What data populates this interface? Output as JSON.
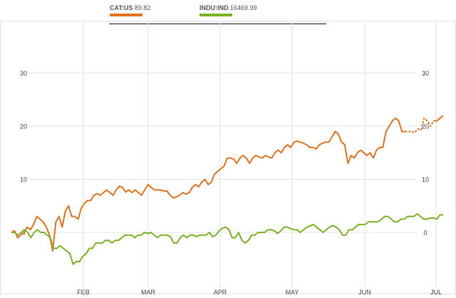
{
  "chart_data": {
    "type": "line",
    "legend": [
      {
        "symbol": "CAT:US",
        "price": "89.82",
        "color": "#e8731f"
      },
      {
        "symbol": "INDU:IND",
        "price": "16469.99",
        "color": "#7ab526"
      }
    ],
    "y_ticks": [
      "0",
      "10",
      "20",
      "30"
    ],
    "ylim": [
      -10,
      40
    ],
    "x_ticks": [
      "FEB",
      "MAR",
      "APR",
      "MAY",
      "JUN",
      "JUL"
    ],
    "grid": true,
    "series": [
      {
        "name": "CAT:US",
        "color": "#e8731f",
        "values": [
          0,
          0.3,
          -1,
          -0.5,
          0,
          1,
          0.5,
          1.5,
          3,
          2.5,
          2,
          1,
          -0.5,
          -3.5,
          2,
          3,
          1,
          4,
          5,
          3,
          3,
          2.5,
          4.5,
          5.5,
          6,
          6,
          7,
          7.3,
          7,
          7.5,
          8,
          7.5,
          7,
          8,
          8.7,
          8.5,
          7.6,
          8,
          7.5,
          8,
          7.5,
          7,
          8,
          9,
          8.5,
          8,
          8,
          8,
          7.8,
          7.8,
          7,
          6.5,
          6.7,
          7,
          7.5,
          7.2,
          7.5,
          8.5,
          9,
          8.6,
          9.5,
          10,
          9,
          9.5,
          11,
          11.5,
          12,
          12.5,
          14,
          14,
          13.8,
          13,
          14,
          14.5,
          14,
          13,
          14,
          14.5,
          14.2,
          14,
          14.5,
          14.2,
          14,
          15,
          15.5,
          15,
          16,
          16.5,
          16,
          17,
          17.2,
          17,
          16.8,
          16.5,
          16,
          16,
          15.7,
          16.5,
          16.8,
          17,
          17,
          18,
          19,
          18.5,
          17,
          16.5,
          13,
          14.5,
          14,
          15,
          15.5,
          15,
          14.5,
          15,
          14,
          15.5,
          16,
          16,
          19,
          20,
          21,
          21.5,
          21,
          19,
          19,
          19,
          19,
          18.8,
          19.5,
          19.3,
          21.5,
          21,
          20,
          21,
          21,
          21.5,
          22
        ],
        "dashed_segment": [
          124,
          133
        ]
      },
      {
        "name": "INDU:IND",
        "color": "#7ab526",
        "values": [
          0,
          0,
          -0.5,
          0,
          0.5,
          0,
          -1,
          0,
          0.5,
          0,
          0,
          -0.5,
          -1,
          -3,
          -3,
          -2.5,
          -3,
          -3.5,
          -4,
          -6,
          -5.5,
          -5.5,
          -4.5,
          -4,
          -3,
          -3,
          -2,
          -2,
          -2,
          -1.5,
          -1.5,
          -2,
          -1.5,
          -1.5,
          -1,
          -0.5,
          -0.5,
          -0.5,
          -1,
          -0.5,
          -0.5,
          0,
          -0.2,
          0,
          -0.5,
          -1,
          -0.5,
          -0.5,
          -0.5,
          -0.8,
          -2,
          -2,
          -1,
          -0.5,
          -1,
          -0.5,
          -0.5,
          -0.8,
          -0.5,
          -0.5,
          -0.5,
          0,
          -0.8,
          -0.5,
          0.3,
          0.8,
          1,
          0.5,
          -1,
          -1,
          0,
          -1.5,
          -2,
          -1.5,
          -0.5,
          -0.5,
          0,
          0,
          0,
          0.5,
          0.5,
          0.3,
          -0.2,
          0.3,
          1,
          1,
          0.7,
          0.5,
          0.5,
          0,
          0.5,
          1,
          1.2,
          1.5,
          1,
          0.5,
          0,
          0.5,
          1,
          1.3,
          1,
          0.5,
          -0.5,
          -0.5,
          0.5,
          0.5,
          1,
          1.5,
          1.5,
          1.5,
          2,
          2,
          2,
          2,
          2.5,
          3,
          3,
          2.5,
          2,
          2,
          2.5,
          2.5,
          3,
          3,
          3,
          3.5,
          3,
          2.5,
          2.5,
          2.7,
          2.7,
          2.5,
          3.3,
          3.3
        ]
      }
    ]
  }
}
